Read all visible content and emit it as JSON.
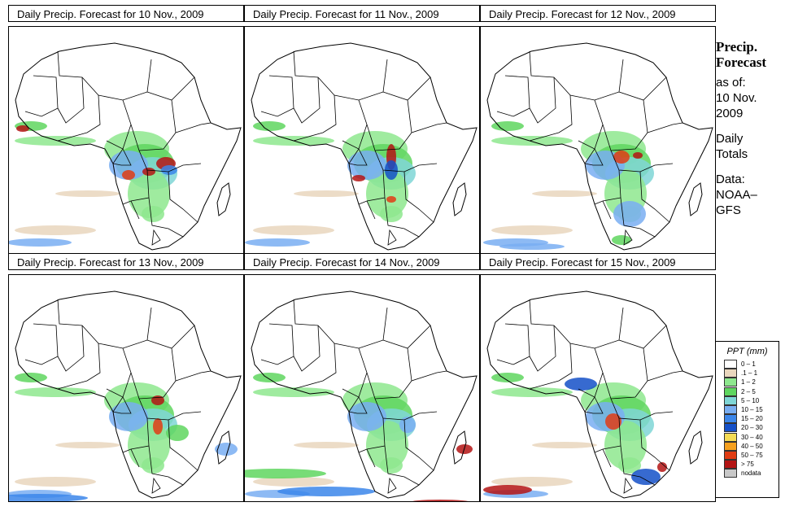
{
  "panels": [
    {
      "title": "Daily Precip. Forecast for  10 Nov., 2009"
    },
    {
      "title": "Daily Precip. Forecast for  11 Nov., 2009"
    },
    {
      "title": "Daily Precip. Forecast for  12 Nov., 2009"
    },
    {
      "title": "Daily Precip. Forecast for  13 Nov., 2009"
    },
    {
      "title": "Daily Precip. Forecast for  14 Nov., 2009"
    },
    {
      "title": "Daily Precip. Forecast for  15 Nov., 2009"
    }
  ],
  "side": {
    "heading1": "Precip.",
    "heading2": "Forecast",
    "asof": "as of:",
    "date1": "10 Nov.",
    "date2": "2009",
    "daily1": "Daily",
    "daily2": "Totals",
    "data1": "Data:",
    "data2": "NOAA–",
    "data3": "GFS"
  },
  "legend": {
    "title": "PPT (mm)",
    "items": [
      {
        "label": "0 – 1",
        "color": "#ffffff"
      },
      {
        "label": ".1 – 1",
        "color": "#e9d6bd"
      },
      {
        "label": "1 – 2",
        "color": "#8ee88e"
      },
      {
        "label": "2 – 5",
        "color": "#5fd65f"
      },
      {
        "label": "5 – 10",
        "color": "#7fd6d6"
      },
      {
        "label": "10 – 15",
        "color": "#79aef2"
      },
      {
        "label": "15 – 20",
        "color": "#3b86ea"
      },
      {
        "label": "20 – 30",
        "color": "#1450c8"
      },
      {
        "label": "30 – 40",
        "color": "#f5dc55"
      },
      {
        "label": "40 – 50",
        "color": "#f5a01e"
      },
      {
        "label": "50 – 75",
        "color": "#e03c14"
      },
      {
        "label": "> 75",
        "color": "#b41414"
      },
      {
        "label": "nodata",
        "color": "#c8c8c8"
      }
    ]
  }
}
